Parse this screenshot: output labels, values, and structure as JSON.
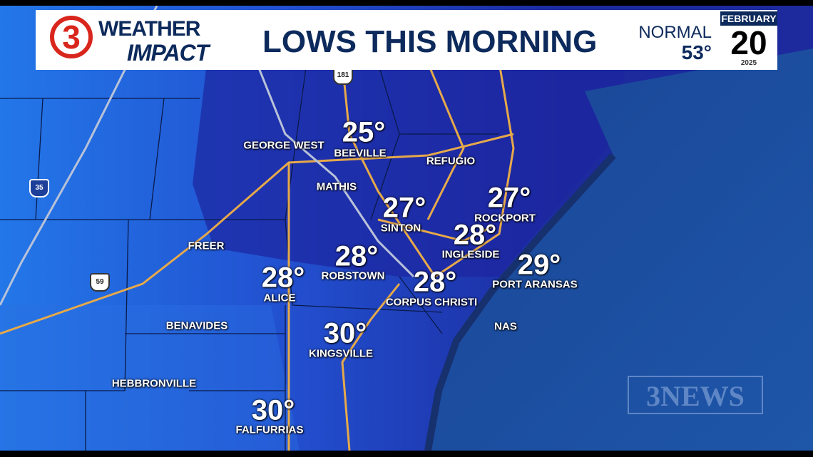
{
  "header": {
    "logo_number": "3",
    "logo_line1": "WEATHER",
    "logo_line2": "IMPACT",
    "title": "LOWS THIS MORNING",
    "normal_label": "NORMAL",
    "normal_value": "53°",
    "date_month": "FEBRUARY",
    "date_day": "20",
    "date_year": "2025"
  },
  "colors": {
    "header_text": "#0d2a5c",
    "logo_red": "#d9261c",
    "land_light": "#2377e8",
    "land_dark": "#1c2a9e",
    "ocean": "#1d4f9e",
    "roads": "#e6a94a"
  },
  "temperatures": [
    {
      "city": "BEEVILLE",
      "temp": "25°"
    },
    {
      "city": "SINTON",
      "temp": "27°"
    },
    {
      "city": "ROCKPORT",
      "temp": "27°"
    },
    {
      "city": "INGLESIDE",
      "temp": "28°"
    },
    {
      "city": "PORT ARANSAS",
      "temp": "29°"
    },
    {
      "city": "ROBSTOWN",
      "temp": "28°"
    },
    {
      "city": "CORPUS CHRISTI",
      "temp": "28°"
    },
    {
      "city": "ALICE",
      "temp": "28°"
    },
    {
      "city": "KINGSVILLE",
      "temp": "30°"
    },
    {
      "city": "FALFURRIAS",
      "temp": "30°"
    }
  ],
  "other_cities": [
    "GEORGE WEST",
    "REFUGIO",
    "MATHIS",
    "FREER",
    "BENAVIDES",
    "NAS",
    "HEBBRONVILLE"
  ],
  "highways": [
    "181",
    "35",
    "59"
  ],
  "watermark": "3NEWS"
}
